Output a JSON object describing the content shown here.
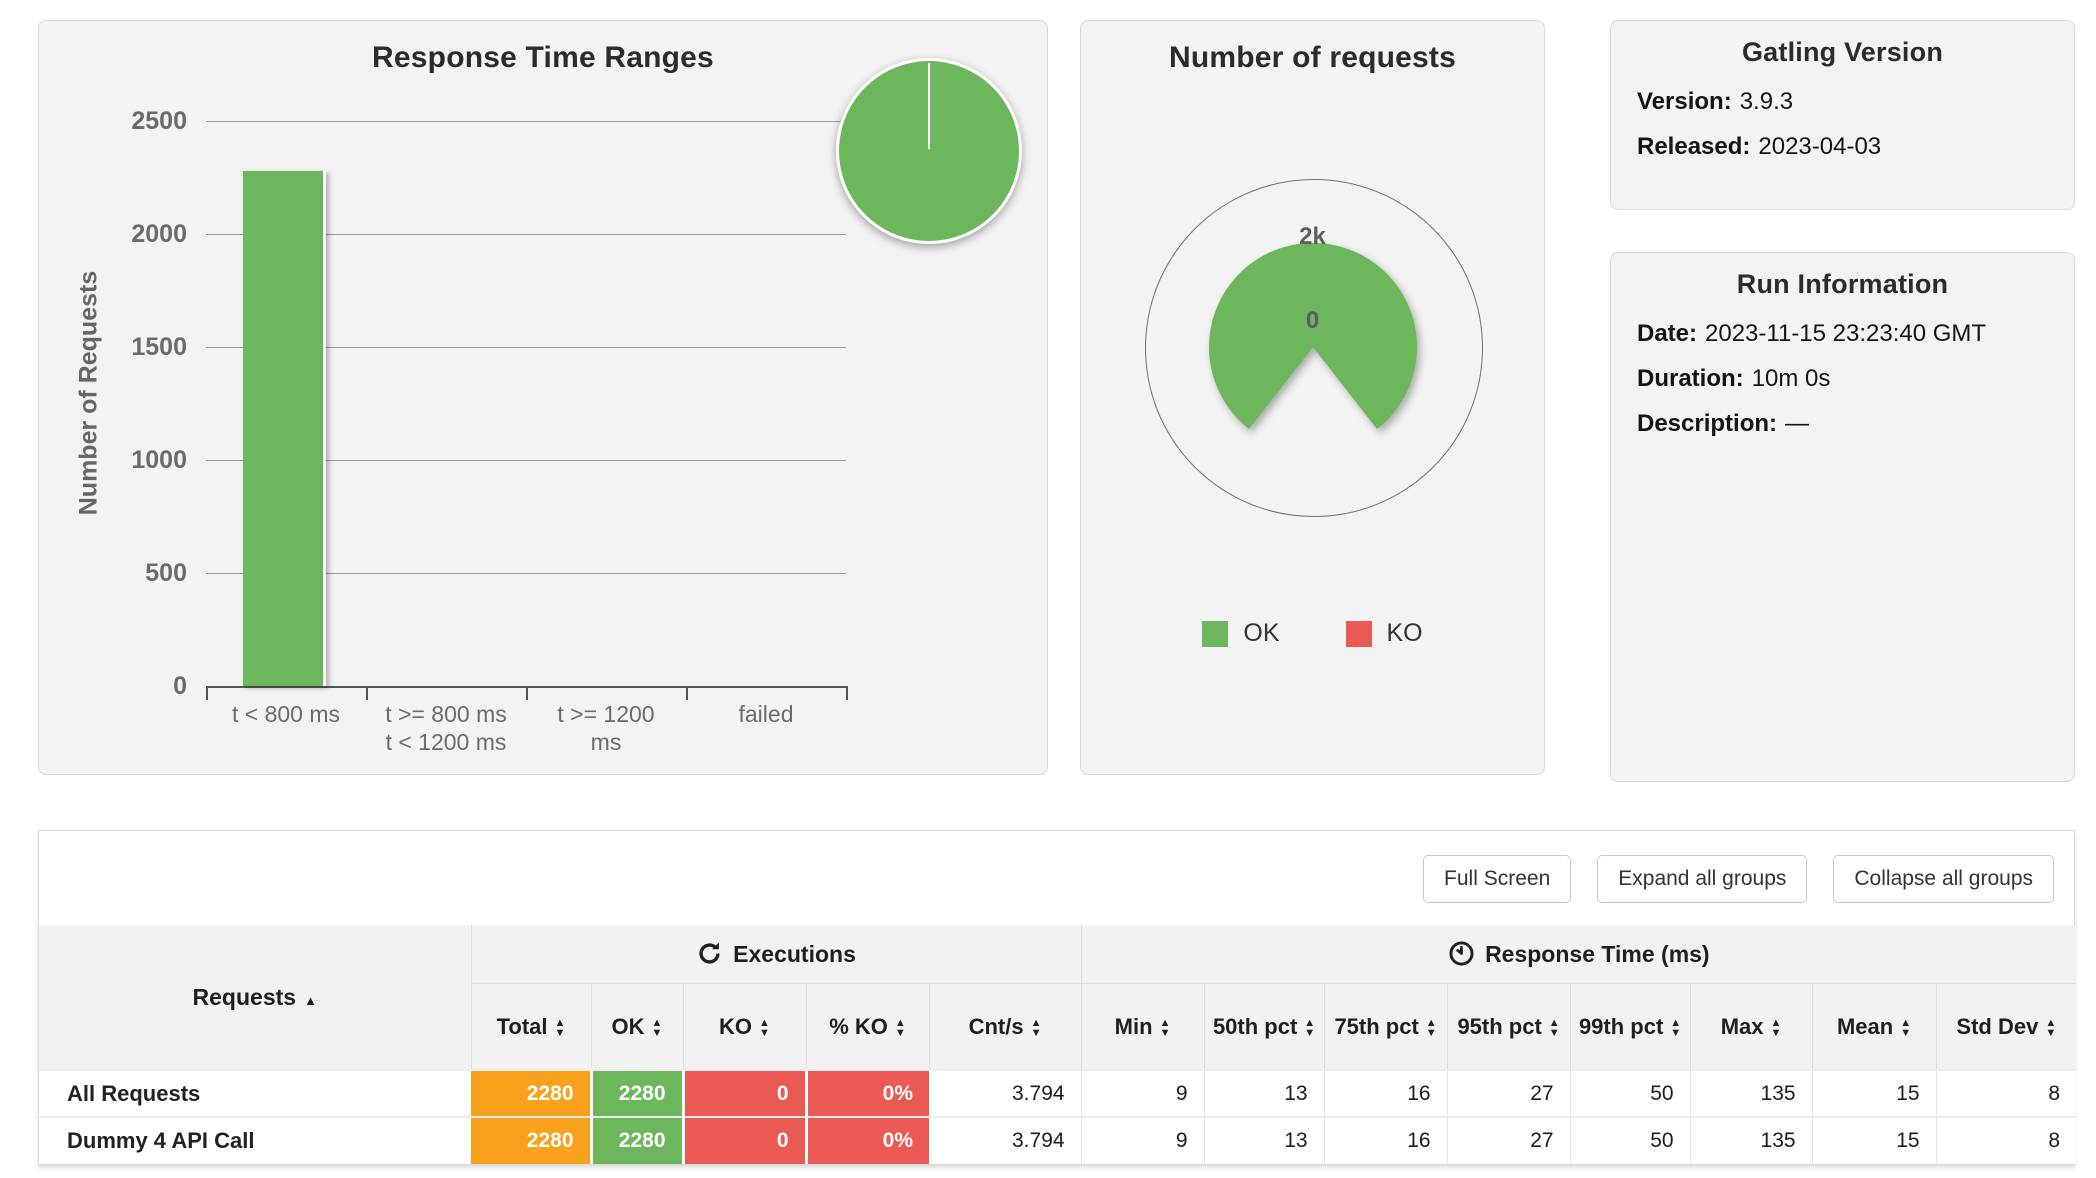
{
  "report": {
    "tool": "Gatling",
    "page": "Load test report"
  },
  "chart_data": [
    {
      "type": "bar",
      "title": "Response Time Ranges",
      "xlabel": "",
      "ylabel": "Number of Requests",
      "categories": [
        "t < 800 ms",
        "t >= 800 ms t < 1200 ms",
        "t >= 1200 ms",
        "failed"
      ],
      "categories_multiline": [
        [
          "t < 800 ms"
        ],
        [
          "t >= 800 ms",
          "t < 1200 ms"
        ],
        [
          "t >= 1200",
          "ms"
        ],
        [
          "failed"
        ]
      ],
      "values": [
        2280,
        0,
        0,
        0
      ],
      "yticks": [
        2500,
        2000,
        1500,
        1000,
        500,
        0
      ],
      "ylim": [
        0,
        2825
      ],
      "grid": true,
      "bar_color": "#6CB65C",
      "inset_pie": {
        "type": "pie",
        "slices": [
          {
            "label": "OK",
            "value": 100,
            "color": "#6CB65C"
          }
        ]
      }
    },
    {
      "type": "pie",
      "style": "polar",
      "title": "Number of requests",
      "series": [
        {
          "name": "OK",
          "value": 2280,
          "color": "#6CB65C"
        },
        {
          "name": "KO",
          "value": 0,
          "color": "#EA5A52"
        }
      ],
      "ring_labels": {
        "outer": "2k",
        "center": "0"
      },
      "legend": [
        {
          "label": "OK",
          "color": "#6CB65C"
        },
        {
          "label": "KO",
          "color": "#EA5A52"
        }
      ],
      "legend_position": "bottom"
    }
  ],
  "version_panel": {
    "title": "Gatling Version",
    "rows": [
      {
        "label": "Version:",
        "value": "3.9.3"
      },
      {
        "label": "Released:",
        "value": "2023-04-03"
      }
    ]
  },
  "run_info_panel": {
    "title": "Run Information",
    "rows": [
      {
        "label": "Date:",
        "value": "2023-11-15 23:23:40 GMT"
      },
      {
        "label": "Duration:",
        "value": "10m 0s"
      },
      {
        "label": "Description:",
        "value": "—"
      }
    ]
  },
  "stats": {
    "buttons": [
      "Full Screen",
      "Expand all groups",
      "Collapse all groups"
    ],
    "table": {
      "requests_header": "Requests",
      "requests_sort": "asc",
      "groups": [
        {
          "label": "Executions",
          "icon": "spinner-icon"
        },
        {
          "label": "Response Time (ms)",
          "icon": "clock-icon"
        }
      ],
      "columns": [
        "Total",
        "OK",
        "KO",
        "% KO",
        "Cnt/s",
        "Min",
        "50th pct",
        "75th pct",
        "95th pct",
        "99th pct",
        "Max",
        "Mean",
        "Std Dev"
      ],
      "rows": [
        {
          "name": "All Requests",
          "cells": [
            "2280",
            "2280",
            "0",
            "0%",
            "3.794",
            "9",
            "13",
            "16",
            "27",
            "50",
            "135",
            "15",
            "8"
          ]
        },
        {
          "name": "Dummy 4 API Call",
          "cells": [
            "2280",
            "2280",
            "0",
            "0%",
            "3.794",
            "9",
            "13",
            "16",
            "27",
            "50",
            "135",
            "15",
            "8"
          ]
        }
      ]
    }
  },
  "colors": {
    "ok_green": "#6CB65C",
    "ko_red": "#EA5A52",
    "total_orange": "#F9A11B",
    "panel_bg": "#f3f3f3"
  }
}
